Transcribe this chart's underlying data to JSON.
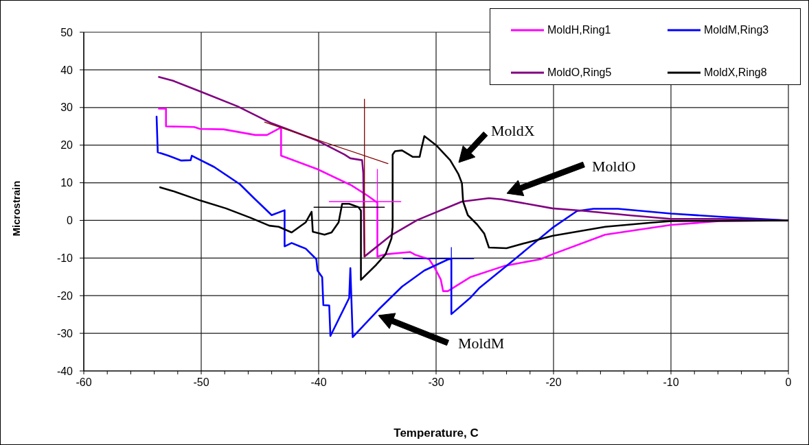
{
  "chart_data": {
    "type": "line",
    "xlabel": "Temperature, C",
    "ylabel": "Microstrain",
    "xlim": [
      -60,
      0
    ],
    "xticks": [
      -60,
      {
        "value": -58,
        "label": null
      },
      {
        "value": -56,
        "label": null
      },
      {
        "value": -54,
        "label": null
      },
      {
        "value": -52,
        "label": null
      },
      -50,
      {
        "value": -48,
        "label": null
      },
      {
        "value": -46,
        "label": null
      },
      {
        "value": -44,
        "label": null
      },
      {
        "value": -42,
        "label": null
      },
      -40,
      {
        "value": -38,
        "label": null
      },
      {
        "value": -36,
        "label": null
      },
      {
        "value": -34,
        "label": null
      },
      {
        "value": -32,
        "label": null
      },
      -30,
      {
        "value": -28,
        "label": null
      },
      {
        "value": -26,
        "label": null
      },
      {
        "value": -24,
        "label": null
      },
      {
        "value": -22,
        "label": null
      },
      -20,
      {
        "value": -18,
        "label": null
      },
      {
        "value": -16,
        "label": null
      },
      {
        "value": -14,
        "label": null
      },
      {
        "value": -12,
        "label": null
      },
      -10,
      {
        "value": -8,
        "label": null
      },
      {
        "value": -6,
        "label": null
      },
      {
        "value": -4,
        "label": null
      },
      {
        "value": -2,
        "label": null
      },
      0
    ],
    "ylim": [
      -40,
      50
    ],
    "yticks": [
      -40,
      -30,
      -20,
      -10,
      0,
      10,
      20,
      30,
      40,
      50
    ],
    "grid": true,
    "legend": "top right",
    "series": [
      {
        "name": "MoldH,Ring1",
        "color": "#ff00ff",
        "x": [
          -53.6,
          -53.0,
          -53.0,
          -50.6,
          -50.1,
          -48.1,
          -45.4,
          -44.4,
          -43.2,
          -43.2,
          -40.1,
          -37.2,
          -35.8,
          -35.0,
          -35.0,
          -34.3,
          -32.2,
          -31.8,
          -30.6,
          -30.1,
          -29.6,
          -29.4,
          -29.0,
          -27.1,
          -24.2,
          -21.1,
          -20.1,
          -15.6,
          -10.0,
          -5.9,
          0
        ],
        "values": [
          29.7,
          29.7,
          25.0,
          24.8,
          24.3,
          24.2,
          22.7,
          22.7,
          24.7,
          17.2,
          13.6,
          9.3,
          6.5,
          4.7,
          -9.6,
          -9.0,
          -8.4,
          -9.1,
          -10.3,
          -12.7,
          -15.7,
          -18.8,
          -18.8,
          -15.1,
          -12.1,
          -10.3,
          -9.0,
          -3.8,
          -1.2,
          -0.2,
          0
        ]
      },
      {
        "name": "MoldM,Ring3",
        "color": "#0000ff",
        "x": [
          -53.8,
          -53.7,
          -52.8,
          -51.7,
          -50.9,
          -50.8,
          -48.9,
          -46.7,
          -45.4,
          -44.0,
          -42.9,
          -42.9,
          -42.3,
          -41.6,
          -41.1,
          -40.2,
          -40.1,
          -39.7,
          -39.6,
          -39.1,
          -39.0,
          -37.4,
          -37.3,
          -37.1,
          -34.9,
          -32.9,
          -31.0,
          -29.0,
          -28.7,
          -28.7,
          -27.1,
          -26.3,
          -23.3,
          -20.1,
          -18.0,
          -16.6,
          -14.5,
          -10.0,
          -5.9,
          0
        ],
        "values": [
          27.6,
          18.1,
          17.2,
          15.9,
          16.0,
          17.2,
          14.2,
          9.6,
          5.6,
          1.4,
          2.7,
          -6.9,
          -6.0,
          -6.9,
          -7.5,
          -10.3,
          -13.3,
          -15.1,
          -22.5,
          -22.6,
          -30.7,
          -20.6,
          -12.7,
          -31.0,
          -23.7,
          -17.6,
          -13.3,
          -10.4,
          -10.2,
          -24.9,
          -20.6,
          -17.9,
          -10.3,
          -2.0,
          2.5,
          3.1,
          3.1,
          1.8,
          1.0,
          0
        ]
      },
      {
        "name": "MoldO,Ring5",
        "color": "#800080",
        "x": [
          -53.6,
          -52.4,
          -50.1,
          -46.9,
          -44.0,
          -40.1,
          -37.8,
          -37.3,
          -36.3,
          -36.2,
          -36.1,
          -33.9,
          -31.6,
          -27.8,
          -25.5,
          -24.4,
          -20.1,
          -17.6,
          -13.7,
          -10.0,
          -5.9,
          0
        ],
        "values": [
          38.1,
          37.1,
          34.3,
          30.3,
          25.8,
          21.2,
          17.5,
          16.5,
          16.0,
          12.6,
          -9.6,
          -4.1,
          0.1,
          5.0,
          5.9,
          5.6,
          3.2,
          2.6,
          1.4,
          0.4,
          0.4,
          0
        ]
      },
      {
        "name": "MoldX,Ring8",
        "color": "#000000",
        "x": [
          -53.5,
          -52.4,
          -50.1,
          -47.9,
          -45.8,
          -44.2,
          -43.4,
          -42.3,
          -41.1,
          -40.6,
          -40.5,
          -39.5,
          -38.9,
          -38.3,
          -38.0,
          -37.4,
          -36.6,
          -36.4,
          -36.4,
          -35.1,
          -34.3,
          -33.8,
          -33.7,
          -33.7,
          -33.5,
          -32.9,
          -32.0,
          -31.4,
          -31.3,
          -31.0,
          -30.0,
          -28.8,
          -28.1,
          -27.8,
          -27.7,
          -27.3,
          -26.5,
          -25.9,
          -25.5,
          -24.0,
          -22.4,
          -20.1,
          -15.6,
          -11.7,
          -10.0,
          0
        ],
        "values": [
          8.8,
          7.8,
          5.3,
          3.2,
          0.7,
          -1.4,
          -1.7,
          -3.2,
          -0.5,
          2.3,
          -3.0,
          -3.8,
          -3.2,
          -0.5,
          4.4,
          4.4,
          3.5,
          2.6,
          -15.8,
          -11.8,
          -9.0,
          -4.8,
          -1.7,
          17.5,
          18.4,
          18.6,
          16.9,
          16.9,
          18.4,
          22.4,
          20.0,
          16.0,
          12.3,
          9.9,
          5.0,
          1.4,
          -1.1,
          -3.5,
          -7.2,
          -7.4,
          -6.0,
          -4.1,
          -1.7,
          -0.6,
          -0.2,
          0
        ]
      },
      {
        "color": "#800000",
        "x": [
          -44.6,
          -34.1
        ],
        "values": [
          26.1,
          15.1
        ]
      },
      {
        "color": "#800000",
        "x": [
          -36.1,
          -36.1
        ],
        "values": [
          32.2,
          -9.6
        ]
      },
      {
        "color": "#000000",
        "x": [
          -40.4,
          -34.4
        ],
        "values": [
          3.5,
          3.5
        ]
      },
      {
        "color": "#ff00ff",
        "x": [
          -39.1,
          -33.0
        ],
        "values": [
          5.0,
          5.0
        ]
      },
      {
        "color": "#ff00ff",
        "x": [
          -35.0,
          -35.0
        ],
        "values": [
          13.6,
          4.7
        ]
      },
      {
        "color": "#0000ff",
        "x": [
          -32.8,
          -26.8
        ],
        "values": [
          -10.2,
          -10.2
        ]
      },
      {
        "color": "#0000ff",
        "x": [
          -28.7,
          -28.7
        ],
        "values": [
          -7.2,
          -10.2
        ]
      }
    ],
    "annotations": [
      "MoldX",
      "MoldO",
      "MoldM"
    ]
  }
}
